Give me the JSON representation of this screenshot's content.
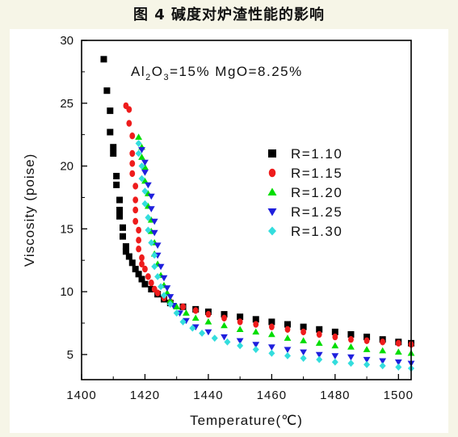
{
  "figure_title": "图 4 碱度对炉渣性能的影响",
  "chart_data": {
    "type": "scatter",
    "title": "",
    "annotation": "Al2O3=15% MgO=8.25%",
    "annotation_parts": [
      "Al",
      "2",
      "O",
      "3",
      "=15% MgO=8.25%"
    ],
    "xlabel": "Temperature(℃)",
    "ylabel": "Viscosity (poise)",
    "xlim": [
      1400,
      1504
    ],
    "ylim": [
      3,
      30
    ],
    "xticks": [
      1400,
      1420,
      1440,
      1460,
      1480,
      1500
    ],
    "xtick_labels": [
      "1400",
      "1420",
      "1440",
      "1460",
      "1480",
      "1500"
    ],
    "yticks": [
      5,
      10,
      15,
      20,
      25,
      30
    ],
    "ytick_labels": [
      "5",
      "10",
      "15",
      "20",
      "25",
      "30"
    ],
    "grid": false,
    "legend_position": "right-middle",
    "series": [
      {
        "name": "R=1.10",
        "color": "#000000",
        "marker": "square",
        "points": [
          [
            1407,
            28.5
          ],
          [
            1408,
            26.0
          ],
          [
            1409,
            24.4
          ],
          [
            1409,
            22.7
          ],
          [
            1410,
            21.5
          ],
          [
            1410,
            21.0
          ],
          [
            1411,
            19.2
          ],
          [
            1411,
            18.5
          ],
          [
            1412,
            17.3
          ],
          [
            1412,
            16.5
          ],
          [
            1412,
            16.0
          ],
          [
            1413,
            15.1
          ],
          [
            1413,
            14.4
          ],
          [
            1414,
            13.6
          ],
          [
            1414,
            13.2
          ],
          [
            1415,
            12.8
          ],
          [
            1416,
            12.3
          ],
          [
            1417,
            11.8
          ],
          [
            1418,
            11.4
          ],
          [
            1419,
            11.0
          ],
          [
            1420,
            10.6
          ],
          [
            1422,
            10.2
          ],
          [
            1424,
            9.8
          ],
          [
            1426,
            9.4
          ],
          [
            1428,
            9.1
          ],
          [
            1432,
            8.8
          ],
          [
            1436,
            8.6
          ],
          [
            1440,
            8.4
          ],
          [
            1445,
            8.2
          ],
          [
            1450,
            8.0
          ],
          [
            1455,
            7.8
          ],
          [
            1460,
            7.6
          ],
          [
            1465,
            7.4
          ],
          [
            1470,
            7.2
          ],
          [
            1475,
            7.0
          ],
          [
            1480,
            6.8
          ],
          [
            1485,
            6.6
          ],
          [
            1490,
            6.4
          ],
          [
            1495,
            6.2
          ],
          [
            1500,
            6.0
          ],
          [
            1504,
            5.9
          ]
        ]
      },
      {
        "name": "R=1.15",
        "color": "#ee1c1c",
        "marker": "circle",
        "points": [
          [
            1414,
            24.8
          ],
          [
            1415,
            24.5
          ],
          [
            1415,
            23.4
          ],
          [
            1416,
            22.4
          ],
          [
            1416,
            21.0
          ],
          [
            1416,
            20.2
          ],
          [
            1416,
            19.4
          ],
          [
            1417,
            18.4
          ],
          [
            1417,
            17.3
          ],
          [
            1417,
            16.5
          ],
          [
            1417,
            15.6
          ],
          [
            1418,
            14.9
          ],
          [
            1418,
            14.1
          ],
          [
            1418,
            13.4
          ],
          [
            1419,
            12.7
          ],
          [
            1419,
            12.2
          ],
          [
            1420,
            11.8
          ],
          [
            1421,
            11.2
          ],
          [
            1422,
            10.7
          ],
          [
            1423,
            10.2
          ],
          [
            1424,
            9.9
          ],
          [
            1426,
            9.5
          ],
          [
            1428,
            9.2
          ],
          [
            1432,
            8.8
          ],
          [
            1436,
            8.5
          ],
          [
            1440,
            8.2
          ],
          [
            1445,
            7.9
          ],
          [
            1450,
            7.6
          ],
          [
            1455,
            7.4
          ],
          [
            1460,
            7.2
          ],
          [
            1465,
            7.0
          ],
          [
            1470,
            6.8
          ],
          [
            1475,
            6.6
          ],
          [
            1480,
            6.4
          ],
          [
            1485,
            6.2
          ],
          [
            1490,
            6.1
          ],
          [
            1495,
            6.0
          ],
          [
            1500,
            5.9
          ],
          [
            1504,
            5.8
          ]
        ]
      },
      {
        "name": "R=1.20",
        "color": "#00dd00",
        "marker": "triangle-up",
        "points": [
          [
            1418,
            22.3
          ],
          [
            1419,
            21.5
          ],
          [
            1419,
            20.7
          ],
          [
            1420,
            19.9
          ],
          [
            1420,
            18.8
          ],
          [
            1421,
            17.8
          ],
          [
            1421,
            16.8
          ],
          [
            1422,
            15.7
          ],
          [
            1422,
            14.8
          ],
          [
            1423,
            13.9
          ],
          [
            1423,
            13.0
          ],
          [
            1424,
            12.2
          ],
          [
            1425,
            11.3
          ],
          [
            1426,
            10.5
          ],
          [
            1427,
            9.9
          ],
          [
            1428,
            9.3
          ],
          [
            1430,
            8.8
          ],
          [
            1433,
            8.3
          ],
          [
            1436,
            7.9
          ],
          [
            1440,
            7.6
          ],
          [
            1445,
            7.3
          ],
          [
            1450,
            7.0
          ],
          [
            1455,
            6.8
          ],
          [
            1460,
            6.6
          ],
          [
            1465,
            6.3
          ],
          [
            1470,
            6.1
          ],
          [
            1475,
            5.9
          ],
          [
            1480,
            5.7
          ],
          [
            1485,
            5.6
          ],
          [
            1490,
            5.4
          ],
          [
            1495,
            5.3
          ],
          [
            1500,
            5.2
          ],
          [
            1504,
            5.1
          ]
        ]
      },
      {
        "name": "R=1.25",
        "color": "#1f1fdd",
        "marker": "triangle-down",
        "points": [
          [
            1419,
            21.3
          ],
          [
            1420,
            20.3
          ],
          [
            1420,
            19.5
          ],
          [
            1421,
            18.5
          ],
          [
            1422,
            17.6
          ],
          [
            1422,
            16.6
          ],
          [
            1423,
            15.6
          ],
          [
            1423,
            14.7
          ],
          [
            1424,
            13.7
          ],
          [
            1424,
            12.9
          ],
          [
            1425,
            12.0
          ],
          [
            1426,
            11.1
          ],
          [
            1427,
            10.3
          ],
          [
            1428,
            9.6
          ],
          [
            1429,
            8.9
          ],
          [
            1431,
            8.3
          ],
          [
            1433,
            7.7
          ],
          [
            1436,
            7.2
          ],
          [
            1440,
            6.8
          ],
          [
            1445,
            6.4
          ],
          [
            1450,
            6.1
          ],
          [
            1455,
            5.8
          ],
          [
            1460,
            5.6
          ],
          [
            1465,
            5.4
          ],
          [
            1470,
            5.2
          ],
          [
            1475,
            5.0
          ],
          [
            1480,
            4.9
          ],
          [
            1485,
            4.8
          ],
          [
            1490,
            4.6
          ],
          [
            1495,
            4.5
          ],
          [
            1500,
            4.4
          ],
          [
            1504,
            4.3
          ]
        ]
      },
      {
        "name": "R=1.30",
        "color": "#33dddd",
        "marker": "diamond",
        "points": [
          [
            1418,
            21.8
          ],
          [
            1418,
            21.0
          ],
          [
            1419,
            20.0
          ],
          [
            1419,
            19.0
          ],
          [
            1420,
            18.0
          ],
          [
            1420,
            17.0
          ],
          [
            1421,
            15.9
          ],
          [
            1421,
            14.9
          ],
          [
            1422,
            13.9
          ],
          [
            1423,
            12.9
          ],
          [
            1423,
            12.0
          ],
          [
            1424,
            11.2
          ],
          [
            1425,
            10.4
          ],
          [
            1426,
            9.7
          ],
          [
            1428,
            9.0
          ],
          [
            1430,
            8.3
          ],
          [
            1432,
            7.6
          ],
          [
            1435,
            7.1
          ],
          [
            1438,
            6.7
          ],
          [
            1442,
            6.3
          ],
          [
            1446,
            6.0
          ],
          [
            1450,
            5.7
          ],
          [
            1455,
            5.4
          ],
          [
            1460,
            5.1
          ],
          [
            1465,
            4.9
          ],
          [
            1470,
            4.7
          ],
          [
            1475,
            4.6
          ],
          [
            1480,
            4.4
          ],
          [
            1485,
            4.3
          ],
          [
            1490,
            4.2
          ],
          [
            1495,
            4.1
          ],
          [
            1500,
            4.0
          ],
          [
            1504,
            3.9
          ]
        ]
      }
    ]
  }
}
